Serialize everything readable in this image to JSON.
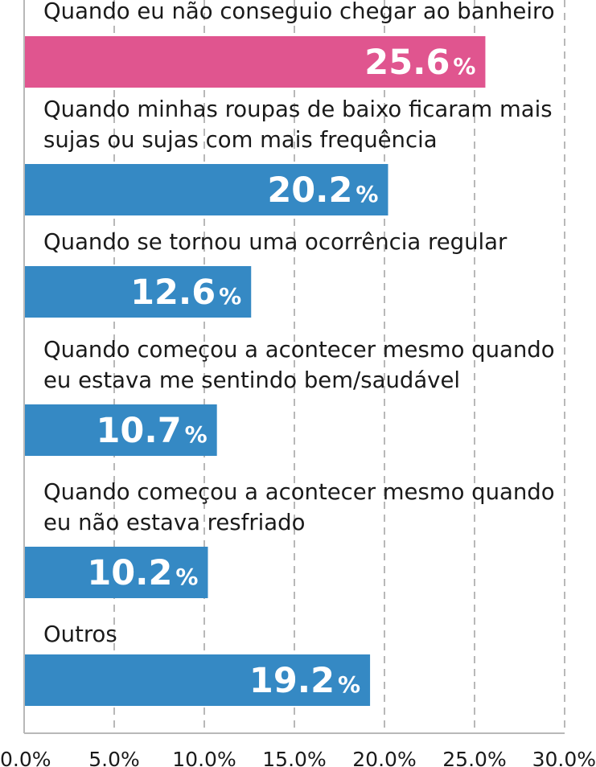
{
  "chart_data": {
    "type": "bar",
    "orientation": "horizontal",
    "categories": [
      [
        "Quando eu não conseguio chegar ao banheiro"
      ],
      [
        "Quando minhas roupas de baixo ficaram mais",
        "sujas ou sujas com mais frequência"
      ],
      [
        "Quando se tornou uma ocorrência regular"
      ],
      [
        "Quando começou a acontecer mesmo quando",
        "eu estava me sentindo bem/saudável"
      ],
      [
        "Quando começou a acontecer mesmo quando",
        "eu não estava resfriado"
      ],
      [
        "Outros"
      ]
    ],
    "values": [
      25.6,
      20.2,
      12.6,
      10.7,
      10.2,
      19.2
    ],
    "value_labels": [
      "25.6",
      "20.2",
      "12.6",
      "10.7",
      "10.2",
      "19.2"
    ],
    "value_suffix": "%",
    "xlim": [
      0,
      30
    ],
    "xticks": [
      0,
      5,
      10,
      15,
      20,
      25,
      30
    ],
    "xtick_labels": [
      "0.0%",
      "5.0%",
      "10.0%",
      "15.0%",
      "20.0%",
      "25.0%",
      "30.0%"
    ],
    "grid": "vertical dashed",
    "bar_colors": [
      "#e0558f",
      "#3589c4",
      "#3589c4",
      "#3589c4",
      "#3589c4",
      "#3589c4"
    ],
    "title": "",
    "xlabel": "",
    "ylabel": ""
  }
}
